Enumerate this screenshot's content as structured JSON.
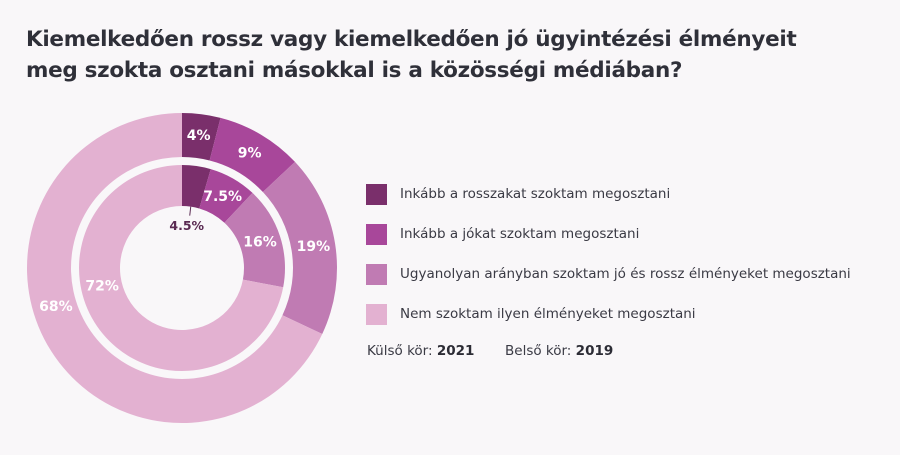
{
  "header": {
    "title_line1": "Kiemelkedően rossz vagy kiemelkedően jó ügyintézési élményeit",
    "title_line2": "meg szokta osztani másokkal is a közösségi médiában?"
  },
  "chart_data": {
    "type": "pie",
    "subtype": "nested-donut",
    "title": "Kiemelkedően rossz vagy kiemelkedően jó ügyintézési élményeit meg szokta osztani másokkal is a közösségi médiában?",
    "categories": [
      "Inkább a rosszakat szoktam megosztani",
      "Inkább a jókat szoktam megosztani",
      "Ugyanolyan arányban szoktam jó és rossz élményeket megosztani",
      "Nem szoktam ilyen élményeket megosztani"
    ],
    "colors": [
      "#7a2f6b",
      "#a8479a",
      "#c07bb3",
      "#e3b1d1"
    ],
    "series": [
      {
        "name": "2021",
        "ring": "outer",
        "values": [
          4,
          9,
          19,
          68
        ],
        "labels": [
          "4%",
          "9%",
          "19%",
          "68%"
        ]
      },
      {
        "name": "2019",
        "ring": "inner",
        "values": [
          4.5,
          7.5,
          16,
          72
        ],
        "labels": [
          "4.5%",
          "7.5%",
          "16%",
          "72%"
        ]
      }
    ],
    "legend_position": "right"
  },
  "note": {
    "outer_label": "Külső kör:",
    "outer_year": "2021",
    "inner_label": "Belső kör:",
    "inner_year": "2019"
  },
  "colors": {
    "background": "#f9f7f9",
    "title": "#2f3039",
    "small_label": "#5a2a52"
  }
}
